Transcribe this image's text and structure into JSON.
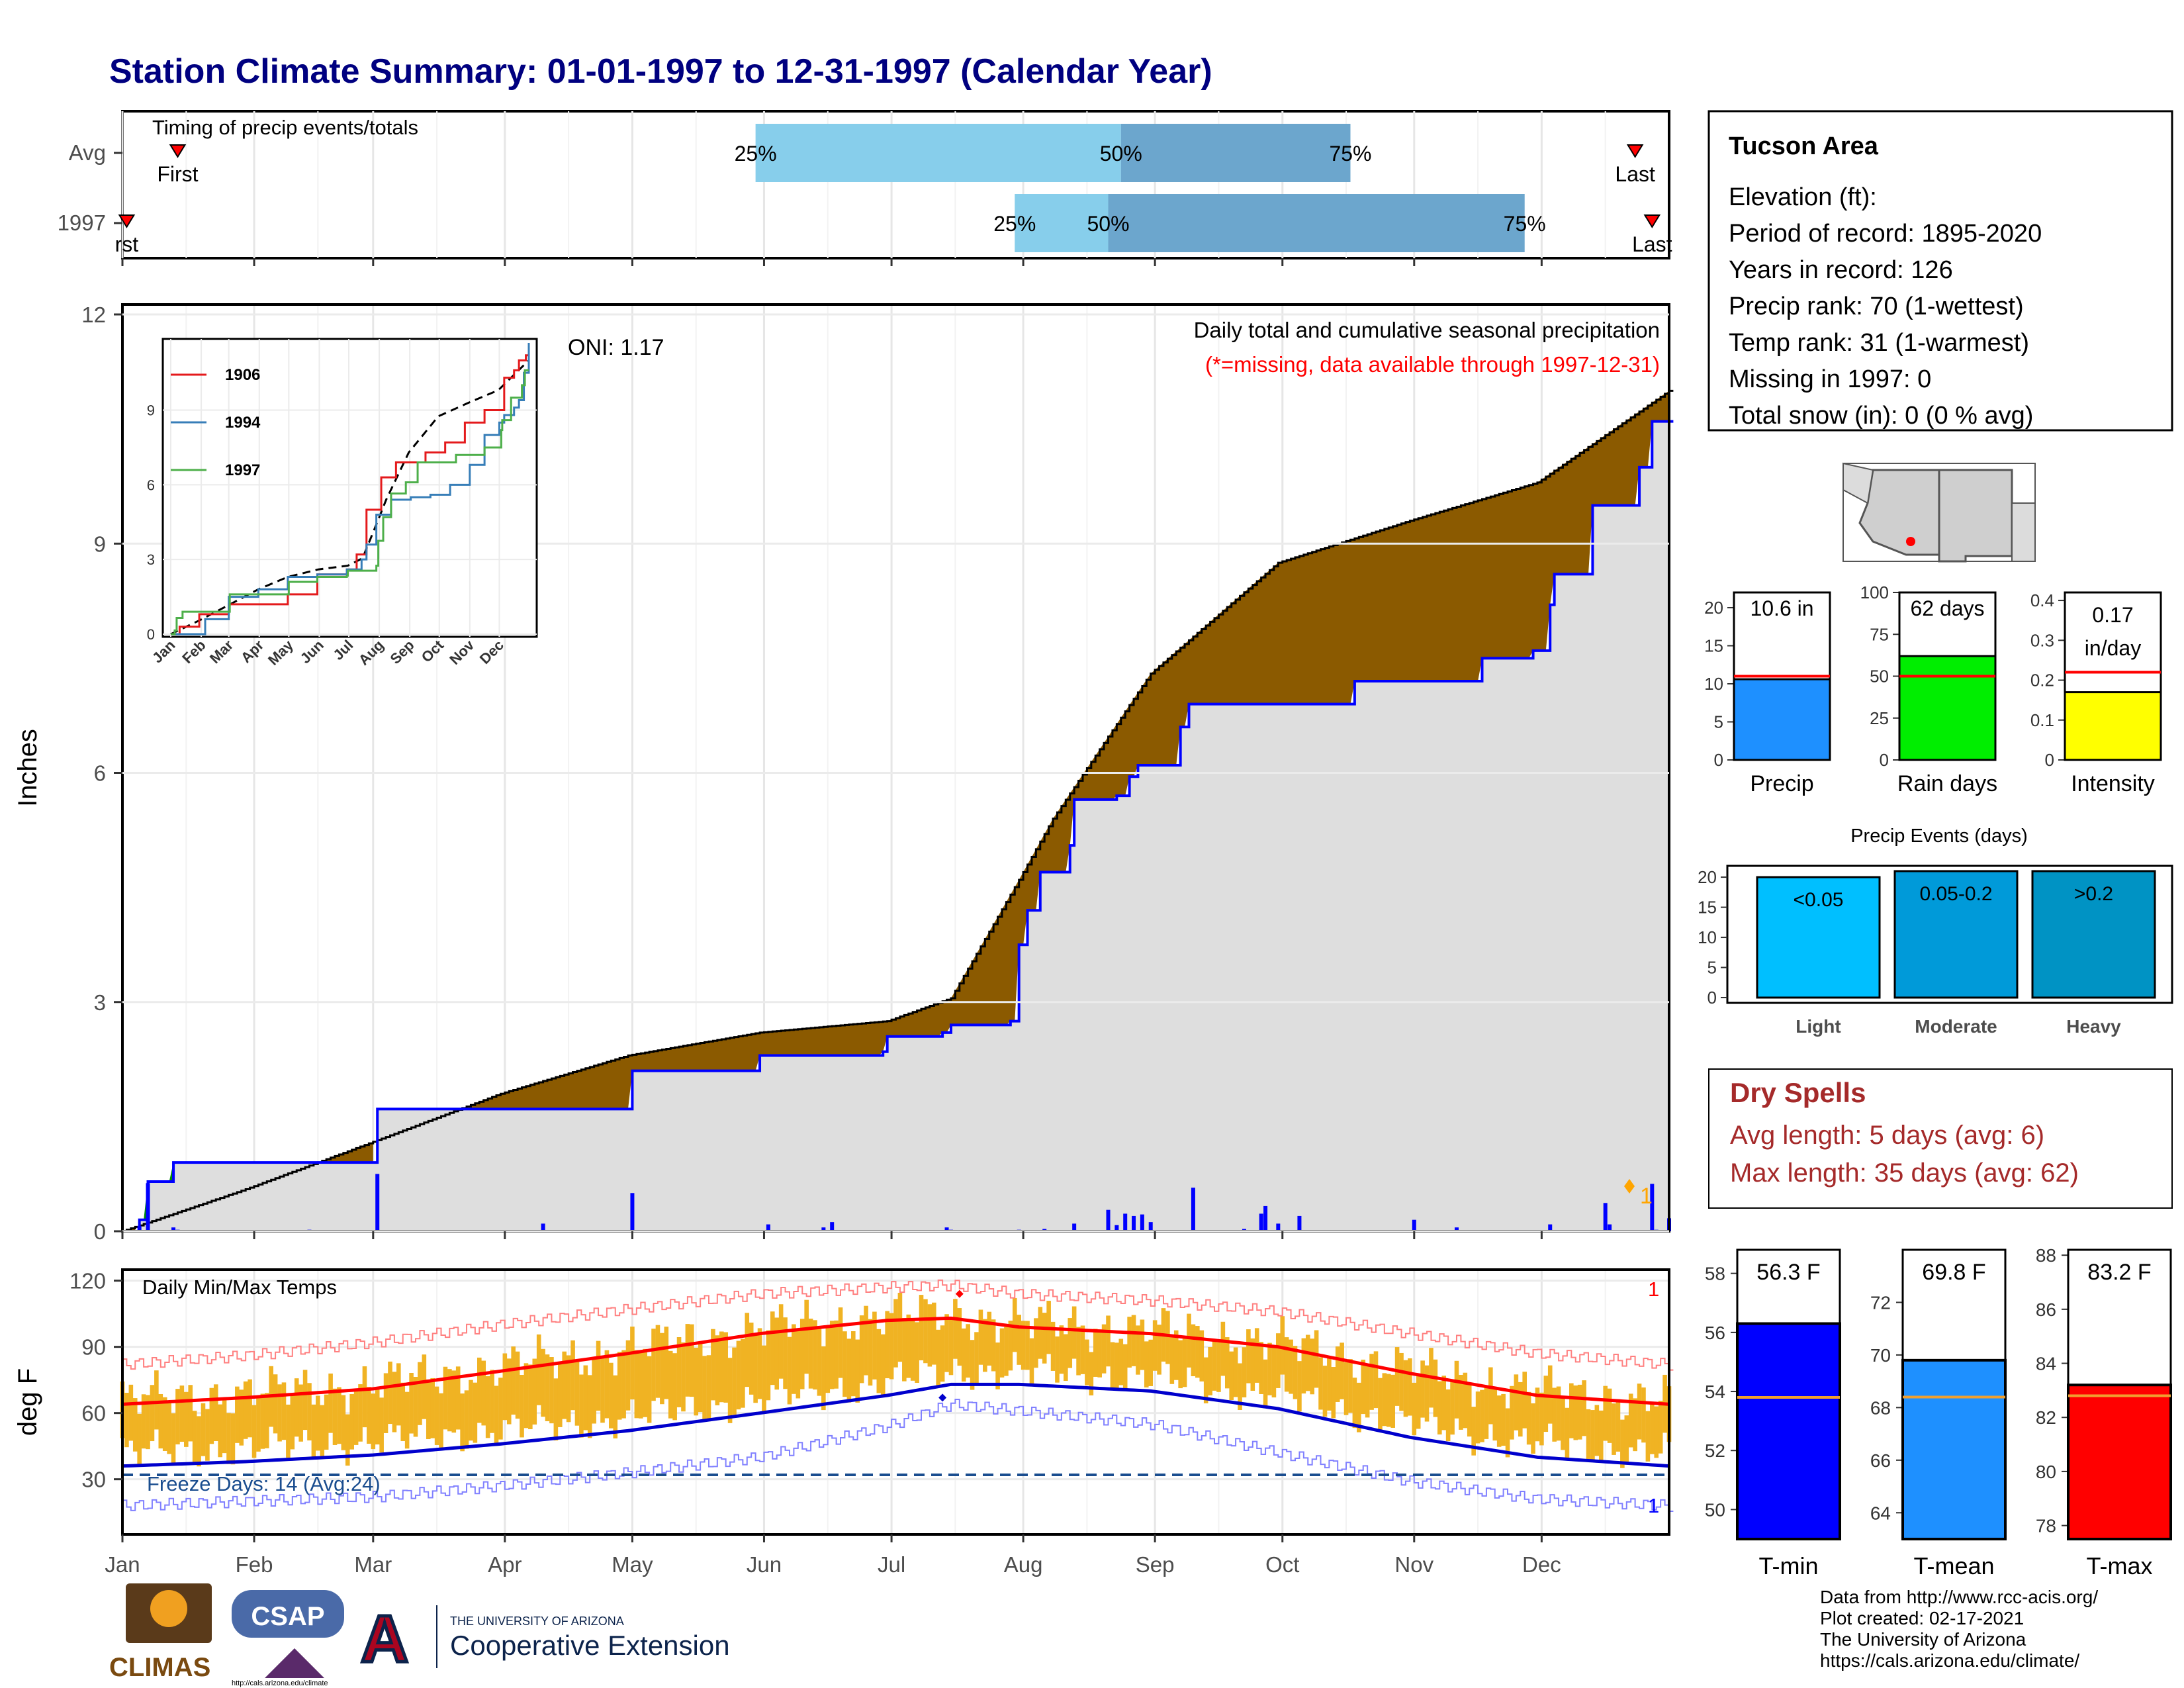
{
  "title": "Station Climate Summary: 01-01-1997 to 12-31-1997 (Calendar Year)",
  "months": [
    "Jan",
    "Feb",
    "Mar",
    "Apr",
    "May",
    "Jun",
    "Jul",
    "Aug",
    "Sep",
    "Oct",
    "Nov",
    "Dec"
  ],
  "timing": {
    "label": "Timing of precip events/totals",
    "rows": [
      {
        "name": "Avg",
        "first": 14,
        "q25": 150,
        "q50": 236,
        "q75": 290,
        "last": 357,
        "first_label": "First",
        "q25_label": "25%",
        "q50_label": "50%",
        "q75_label": "75%",
        "last_label": "Last"
      },
      {
        "name": "1997",
        "first": 2,
        "q25": 211,
        "q50": 233,
        "q75": 331,
        "last": 361,
        "first_label": "rst",
        "q25_label": "25%",
        "q50_label": "50%",
        "q75_label": "75%",
        "last_label": "Last"
      }
    ]
  },
  "precip": {
    "ylabel": "Inches",
    "yticks": [
      0,
      3,
      6,
      9,
      12
    ],
    "ymax": 12,
    "oni": "ONI: 1.17",
    "caption": "Daily total and cumulative seasonal precipitation",
    "missing_note": "(*=missing, data available through 1997-12-31)",
    "missing_marker": "1",
    "avg_cum": [
      [
        1,
        0.0
      ],
      [
        30,
        0.55
      ],
      [
        59,
        1.15
      ],
      [
        90,
        1.8
      ],
      [
        120,
        2.3
      ],
      [
        151,
        2.6
      ],
      [
        181,
        2.75
      ],
      [
        196,
        3.05
      ],
      [
        212,
        4.6
      ],
      [
        220,
        5.4
      ],
      [
        243,
        7.3
      ],
      [
        273,
        8.75
      ],
      [
        304,
        9.3
      ],
      [
        334,
        9.8
      ],
      [
        365,
        11.0
      ]
    ],
    "obs_cum": [
      [
        1,
        0.0
      ],
      [
        5,
        0.15
      ],
      [
        7,
        0.65
      ],
      [
        13,
        0.9
      ],
      [
        60,
        0.9
      ],
      [
        61,
        1.6
      ],
      [
        120,
        1.6
      ],
      [
        121,
        2.1
      ],
      [
        150,
        2.1
      ],
      [
        151,
        2.3
      ],
      [
        180,
        2.35
      ],
      [
        181,
        2.55
      ],
      [
        194,
        2.6
      ],
      [
        196,
        2.7
      ],
      [
        210,
        2.75
      ],
      [
        212,
        3.75
      ],
      [
        214,
        4.2
      ],
      [
        217,
        4.7
      ],
      [
        224,
        5.05
      ],
      [
        225,
        5.65
      ],
      [
        235,
        5.7
      ],
      [
        238,
        5.95
      ],
      [
        240,
        6.1
      ],
      [
        250,
        6.6
      ],
      [
        252,
        6.9
      ],
      [
        290,
        6.9
      ],
      [
        291,
        7.2
      ],
      [
        320,
        7.2
      ],
      [
        321,
        7.5
      ],
      [
        332,
        7.5
      ],
      [
        333,
        7.6
      ],
      [
        337,
        8.2
      ],
      [
        338,
        8.6
      ],
      [
        346,
        8.6
      ],
      [
        347,
        9.5
      ],
      [
        357,
        9.5
      ],
      [
        358,
        10.0
      ],
      [
        360,
        10.0
      ],
      [
        361,
        10.6
      ],
      [
        365,
        10.6
      ]
    ],
    "daily": [
      [
        5,
        0.07
      ],
      [
        7,
        0.63
      ],
      [
        13,
        0.05
      ],
      [
        14,
        0.02
      ],
      [
        45,
        0.02
      ],
      [
        61,
        0.75
      ],
      [
        100,
        0.1
      ],
      [
        121,
        0.5
      ],
      [
        153,
        0.09
      ],
      [
        166,
        0.05
      ],
      [
        168,
        0.12
      ],
      [
        195,
        0.05
      ],
      [
        196,
        0.02
      ],
      [
        209,
        0.01
      ],
      [
        212,
        0.02
      ],
      [
        218,
        0.03
      ],
      [
        225,
        0.1
      ],
      [
        233,
        0.28
      ],
      [
        235,
        0.08
      ],
      [
        237,
        0.23
      ],
      [
        239,
        0.2
      ],
      [
        241,
        0.22
      ],
      [
        243,
        0.12
      ],
      [
        253,
        0.57
      ],
      [
        265,
        0.03
      ],
      [
        269,
        0.23
      ],
      [
        270,
        0.33
      ],
      [
        273,
        0.1
      ],
      [
        278,
        0.2
      ],
      [
        305,
        0.15
      ],
      [
        315,
        0.05
      ],
      [
        337,
        0.09
      ],
      [
        350,
        0.37
      ],
      [
        351,
        0.09
      ],
      [
        361,
        0.62
      ],
      [
        362,
        0.02
      ],
      [
        365,
        0.17
      ]
    ]
  },
  "inset": {
    "yticks": [
      0,
      3,
      6,
      9
    ],
    "ymax": 11.7,
    "series": [
      {
        "name": "1906",
        "color": "#e41a1c",
        "points": [
          [
            1,
            0.0
          ],
          [
            10,
            0.3
          ],
          [
            30,
            0.8
          ],
          [
            60,
            1.2
          ],
          [
            120,
            1.6
          ],
          [
            140,
            1.6
          ],
          [
            150,
            2.4
          ],
          [
            180,
            2.6
          ],
          [
            190,
            3.2
          ],
          [
            200,
            5.0
          ],
          [
            215,
            6.3
          ],
          [
            230,
            6.9
          ],
          [
            260,
            7.3
          ],
          [
            280,
            7.7
          ],
          [
            300,
            8.5
          ],
          [
            320,
            9.0
          ],
          [
            340,
            10.3
          ],
          [
            350,
            10.6
          ],
          [
            355,
            11.0
          ],
          [
            362,
            11.2
          ],
          [
            365,
            11.6
          ]
        ]
      },
      {
        "name": "1994",
        "color": "#377eb8",
        "points": [
          [
            1,
            0.0
          ],
          [
            35,
            0.0
          ],
          [
            36,
            0.6
          ],
          [
            60,
            1.5
          ],
          [
            90,
            1.8
          ],
          [
            120,
            2.3
          ],
          [
            150,
            2.4
          ],
          [
            180,
            2.6
          ],
          [
            195,
            3.0
          ],
          [
            200,
            3.6
          ],
          [
            210,
            4.8
          ],
          [
            225,
            5.4
          ],
          [
            245,
            5.5
          ],
          [
            265,
            5.6
          ],
          [
            285,
            6.0
          ],
          [
            305,
            6.8
          ],
          [
            320,
            8.0
          ],
          [
            335,
            8.5
          ],
          [
            340,
            8.8
          ],
          [
            350,
            9.1
          ],
          [
            355,
            9.4
          ],
          [
            360,
            10.5
          ],
          [
            365,
            11.7
          ]
        ]
      },
      {
        "name": "1997",
        "color": "#4daf4a",
        "points": [
          [
            1,
            0.0
          ],
          [
            5,
            0.15
          ],
          [
            7,
            0.65
          ],
          [
            13,
            0.9
          ],
          [
            60,
            0.9
          ],
          [
            61,
            1.6
          ],
          [
            120,
            1.6
          ],
          [
            121,
            2.1
          ],
          [
            150,
            2.3
          ],
          [
            180,
            2.35
          ],
          [
            181,
            2.55
          ],
          [
            210,
            2.75
          ],
          [
            212,
            3.75
          ],
          [
            217,
            4.7
          ],
          [
            225,
            5.65
          ],
          [
            240,
            6.1
          ],
          [
            252,
            6.9
          ],
          [
            290,
            6.9
          ],
          [
            291,
            7.2
          ],
          [
            320,
            7.5
          ],
          [
            337,
            8.2
          ],
          [
            338,
            8.6
          ],
          [
            347,
            9.5
          ],
          [
            358,
            10.0
          ],
          [
            361,
            10.6
          ],
          [
            365,
            10.6
          ]
        ]
      }
    ],
    "avg_color": "#000000",
    "month_labels": [
      "Jan",
      "Feb",
      "Mar",
      "Apr",
      "May",
      "Jun",
      "Jul",
      "Aug",
      "Sep",
      "Oct",
      "Nov",
      "Dec"
    ]
  },
  "temps": {
    "ylabel": "deg F",
    "yticks": [
      30,
      60,
      90,
      120
    ],
    "label": "Daily Min/Max Temps",
    "freeze": "Freeze Days: 14 (Avg:24)",
    "freeze_line": 32,
    "max_count": "1",
    "min_count": "1",
    "avg_max": [
      [
        1,
        64
      ],
      [
        30,
        67
      ],
      [
        60,
        71
      ],
      [
        90,
        79
      ],
      [
        120,
        87
      ],
      [
        151,
        96
      ],
      [
        181,
        102
      ],
      [
        196,
        103
      ],
      [
        212,
        99
      ],
      [
        243,
        96
      ],
      [
        273,
        90
      ],
      [
        304,
        78
      ],
      [
        334,
        68
      ],
      [
        365,
        64
      ]
    ],
    "avg_min": [
      [
        1,
        36
      ],
      [
        30,
        38
      ],
      [
        60,
        41
      ],
      [
        90,
        46
      ],
      [
        120,
        52
      ],
      [
        151,
        60
      ],
      [
        181,
        68
      ],
      [
        196,
        73
      ],
      [
        212,
        73
      ],
      [
        243,
        70
      ],
      [
        273,
        62
      ],
      [
        304,
        49
      ],
      [
        334,
        40
      ],
      [
        365,
        36
      ]
    ],
    "rec_max": [
      [
        1,
        82
      ],
      [
        30,
        86
      ],
      [
        60,
        92
      ],
      [
        90,
        100
      ],
      [
        120,
        107
      ],
      [
        151,
        114
      ],
      [
        181,
        117
      ],
      [
        196,
        118
      ],
      [
        212,
        114
      ],
      [
        243,
        111
      ],
      [
        273,
        106
      ],
      [
        304,
        96
      ],
      [
        334,
        87
      ],
      [
        365,
        82
      ]
    ],
    "rec_min": [
      [
        1,
        18
      ],
      [
        30,
        20
      ],
      [
        60,
        22
      ],
      [
        90,
        27
      ],
      [
        120,
        33
      ],
      [
        151,
        40
      ],
      [
        181,
        54
      ],
      [
        196,
        64
      ],
      [
        212,
        61
      ],
      [
        243,
        55
      ],
      [
        273,
        42
      ],
      [
        304,
        29
      ],
      [
        334,
        21
      ],
      [
        365,
        18
      ]
    ]
  },
  "station": {
    "name": "Tucson Area",
    "lines": [
      "Elevation (ft):",
      "Period of record: 1895-2020",
      "Years in record: 126",
      "Precip rank: 70 (1-wettest)",
      "Temp rank: 31 (1-warmest)",
      "Missing in 1997: 0",
      "Total snow (in): 0 (0 % avg)"
    ]
  },
  "summary_bars": [
    {
      "label": "Precip",
      "value": 10.6,
      "avg": 11.0,
      "ymax": 22,
      "yticks": [
        0,
        5,
        10,
        15,
        20
      ],
      "text": "10.6 in",
      "color": "#1e90ff"
    },
    {
      "label": "Rain days",
      "value": 62,
      "avg": 50,
      "ymax": 100,
      "yticks": [
        0,
        25,
        50,
        75,
        100
      ],
      "text": "62 days",
      "color": "#00ee00"
    },
    {
      "label": "Intensity",
      "value": 0.17,
      "avg": 0.22,
      "ymax": 0.42,
      "yticks": [
        0.0,
        0.1,
        0.2,
        0.3,
        0.4
      ],
      "text": "0.17 in/day",
      "color": "#ffff00"
    }
  ],
  "events": {
    "title": "Precip Events (days)",
    "yticks": [
      0,
      5,
      10,
      15,
      20
    ],
    "ymax": 21,
    "bars": [
      {
        "label": "Light",
        "range": "<0.05",
        "value": 20,
        "color": "#00bfff"
      },
      {
        "label": "Moderate",
        "range": "0.05-0.2",
        "value": 21,
        "color": "#009ad9"
      },
      {
        "label": "Heavy",
        "range": ">0.2",
        "value": 21,
        "color": "#0093c4"
      }
    ]
  },
  "dry_spells": {
    "title": "Dry Spells",
    "avg": "Avg length: 5 days (avg: 6)",
    "max": "Max length: 35 days (avg: 62)"
  },
  "temp_bars": [
    {
      "label": "T-min",
      "value": 56.3,
      "avg": 53.8,
      "ymin": 49,
      "ymax": 58.8,
      "yticks": [
        50,
        52,
        54,
        56,
        58
      ],
      "text": "56.3 F",
      "color": "#0000ff"
    },
    {
      "label": "T-mean",
      "value": 69.8,
      "avg": 68.4,
      "ymin": 63,
      "ymax": 74,
      "yticks": [
        64,
        66,
        68,
        70,
        72
      ],
      "text": "69.8 F",
      "color": "#1e90ff"
    },
    {
      "label": "T-max",
      "value": 83.2,
      "avg": 82.8,
      "ymin": 77.5,
      "ymax": 88.2,
      "yticks": [
        78,
        80,
        82,
        84,
        86,
        88
      ],
      "text": "83.2 F",
      "color": "#ff0000"
    }
  ],
  "credits": [
    "Data from http://www.rcc-acis.org/",
    "Plot created: 02-17-2021",
    "The University of Arizona",
    "https://cals.arizona.edu/climate/"
  ],
  "logos": {
    "climas": "CLIMAS",
    "csap": "CSAP",
    "csap_url": "http://cals.arizona.edu/climate",
    "ua_small": "THE UNIVERSITY OF ARIZONA",
    "ua_big": "Cooperative Extension",
    "ua_letter": "A"
  }
}
